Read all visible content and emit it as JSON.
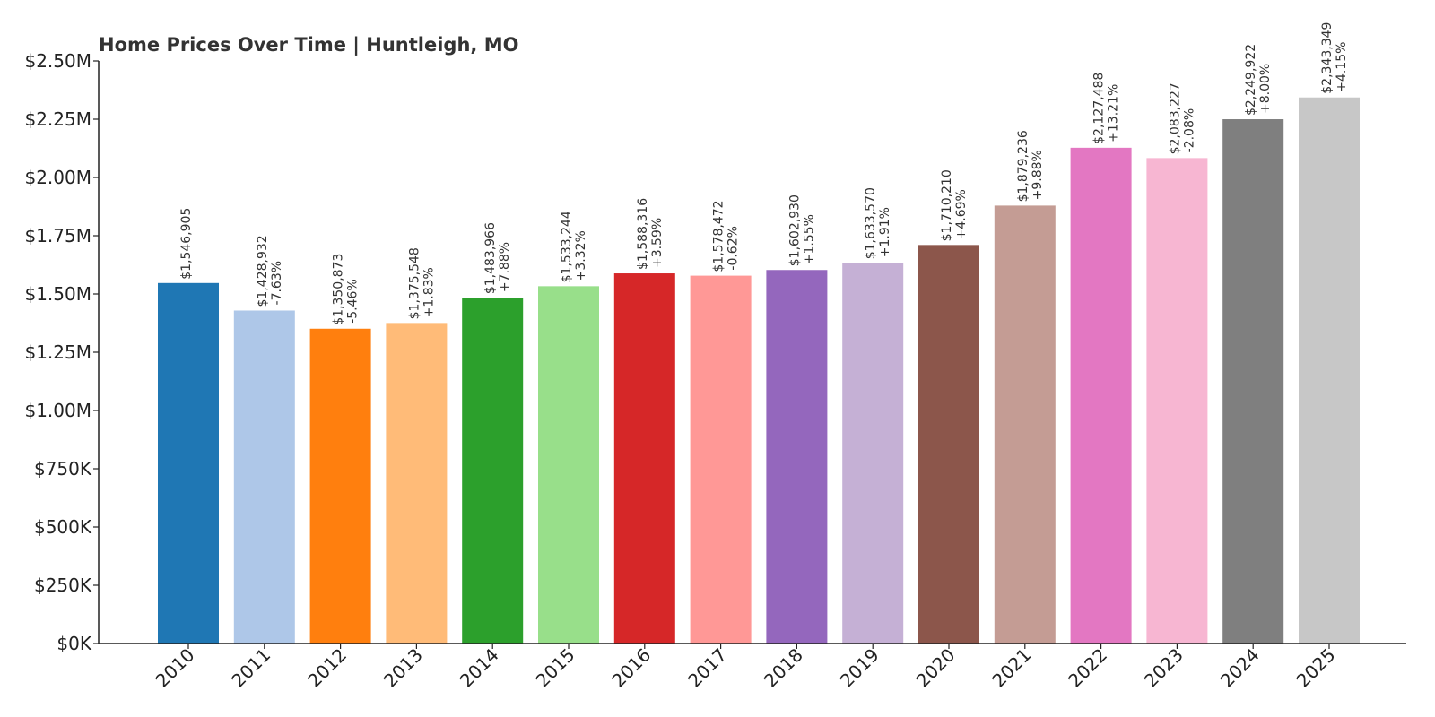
{
  "chart_data": {
    "type": "bar",
    "title": "Home Prices Over Time | Huntleigh, MO",
    "xlabel": "",
    "ylabel": "",
    "ylim": [
      0,
      2500000
    ],
    "grid": false,
    "legend": "none",
    "y_ticks": [
      {
        "value": 0,
        "label": "$0K"
      },
      {
        "value": 250000,
        "label": "$250K"
      },
      {
        "value": 500000,
        "label": "$500K"
      },
      {
        "value": 750000,
        "label": "$750K"
      },
      {
        "value": 1000000,
        "label": "$1.00M"
      },
      {
        "value": 1250000,
        "label": "$1.25M"
      },
      {
        "value": 1500000,
        "label": "$1.50M"
      },
      {
        "value": 1750000,
        "label": "$1.75M"
      },
      {
        "value": 2000000,
        "label": "$2.00M"
      },
      {
        "value": 2250000,
        "label": "$2.25M"
      },
      {
        "value": 2500000,
        "label": "$2.50M"
      }
    ],
    "categories": [
      "2010",
      "2011",
      "2012",
      "2013",
      "2014",
      "2015",
      "2016",
      "2017",
      "2018",
      "2019",
      "2020",
      "2021",
      "2022",
      "2023",
      "2024",
      "2025"
    ],
    "values": [
      1546905,
      1428932,
      1350873,
      1375548,
      1483966,
      1533244,
      1588316,
      1578472,
      1602930,
      1633570,
      1710210,
      1879236,
      2127488,
      2083227,
      2249922,
      2343349
    ],
    "value_labels": [
      "$1,546,905",
      "$1,428,932",
      "$1,350,873",
      "$1,375,548",
      "$1,483,966",
      "$1,533,244",
      "$1,588,316",
      "$1,578,472",
      "$1,602,930",
      "$1,633,570",
      "$1,710,210",
      "$1,879,236",
      "$2,127,488",
      "$2,083,227",
      "$2,249,922",
      "$2,343,349"
    ],
    "change_labels": [
      "",
      "-7.63%",
      "-5.46%",
      "+1.83%",
      "+7.88%",
      "+3.32%",
      "+3.59%",
      "-0.62%",
      "+1.55%",
      "+1.91%",
      "+4.69%",
      "+9.88%",
      "+13.21%",
      "-2.08%",
      "+8.00%",
      "+4.15%"
    ],
    "colors": [
      "#1f77b4",
      "#aec7e8",
      "#ff7f0e",
      "#ffbb78",
      "#2ca02c",
      "#98df8a",
      "#d62728",
      "#ff9896",
      "#9467bd",
      "#c5b0d5",
      "#8c564b",
      "#c49c94",
      "#e377c2",
      "#f7b6d2",
      "#7f7f7f",
      "#c7c7c7"
    ]
  }
}
